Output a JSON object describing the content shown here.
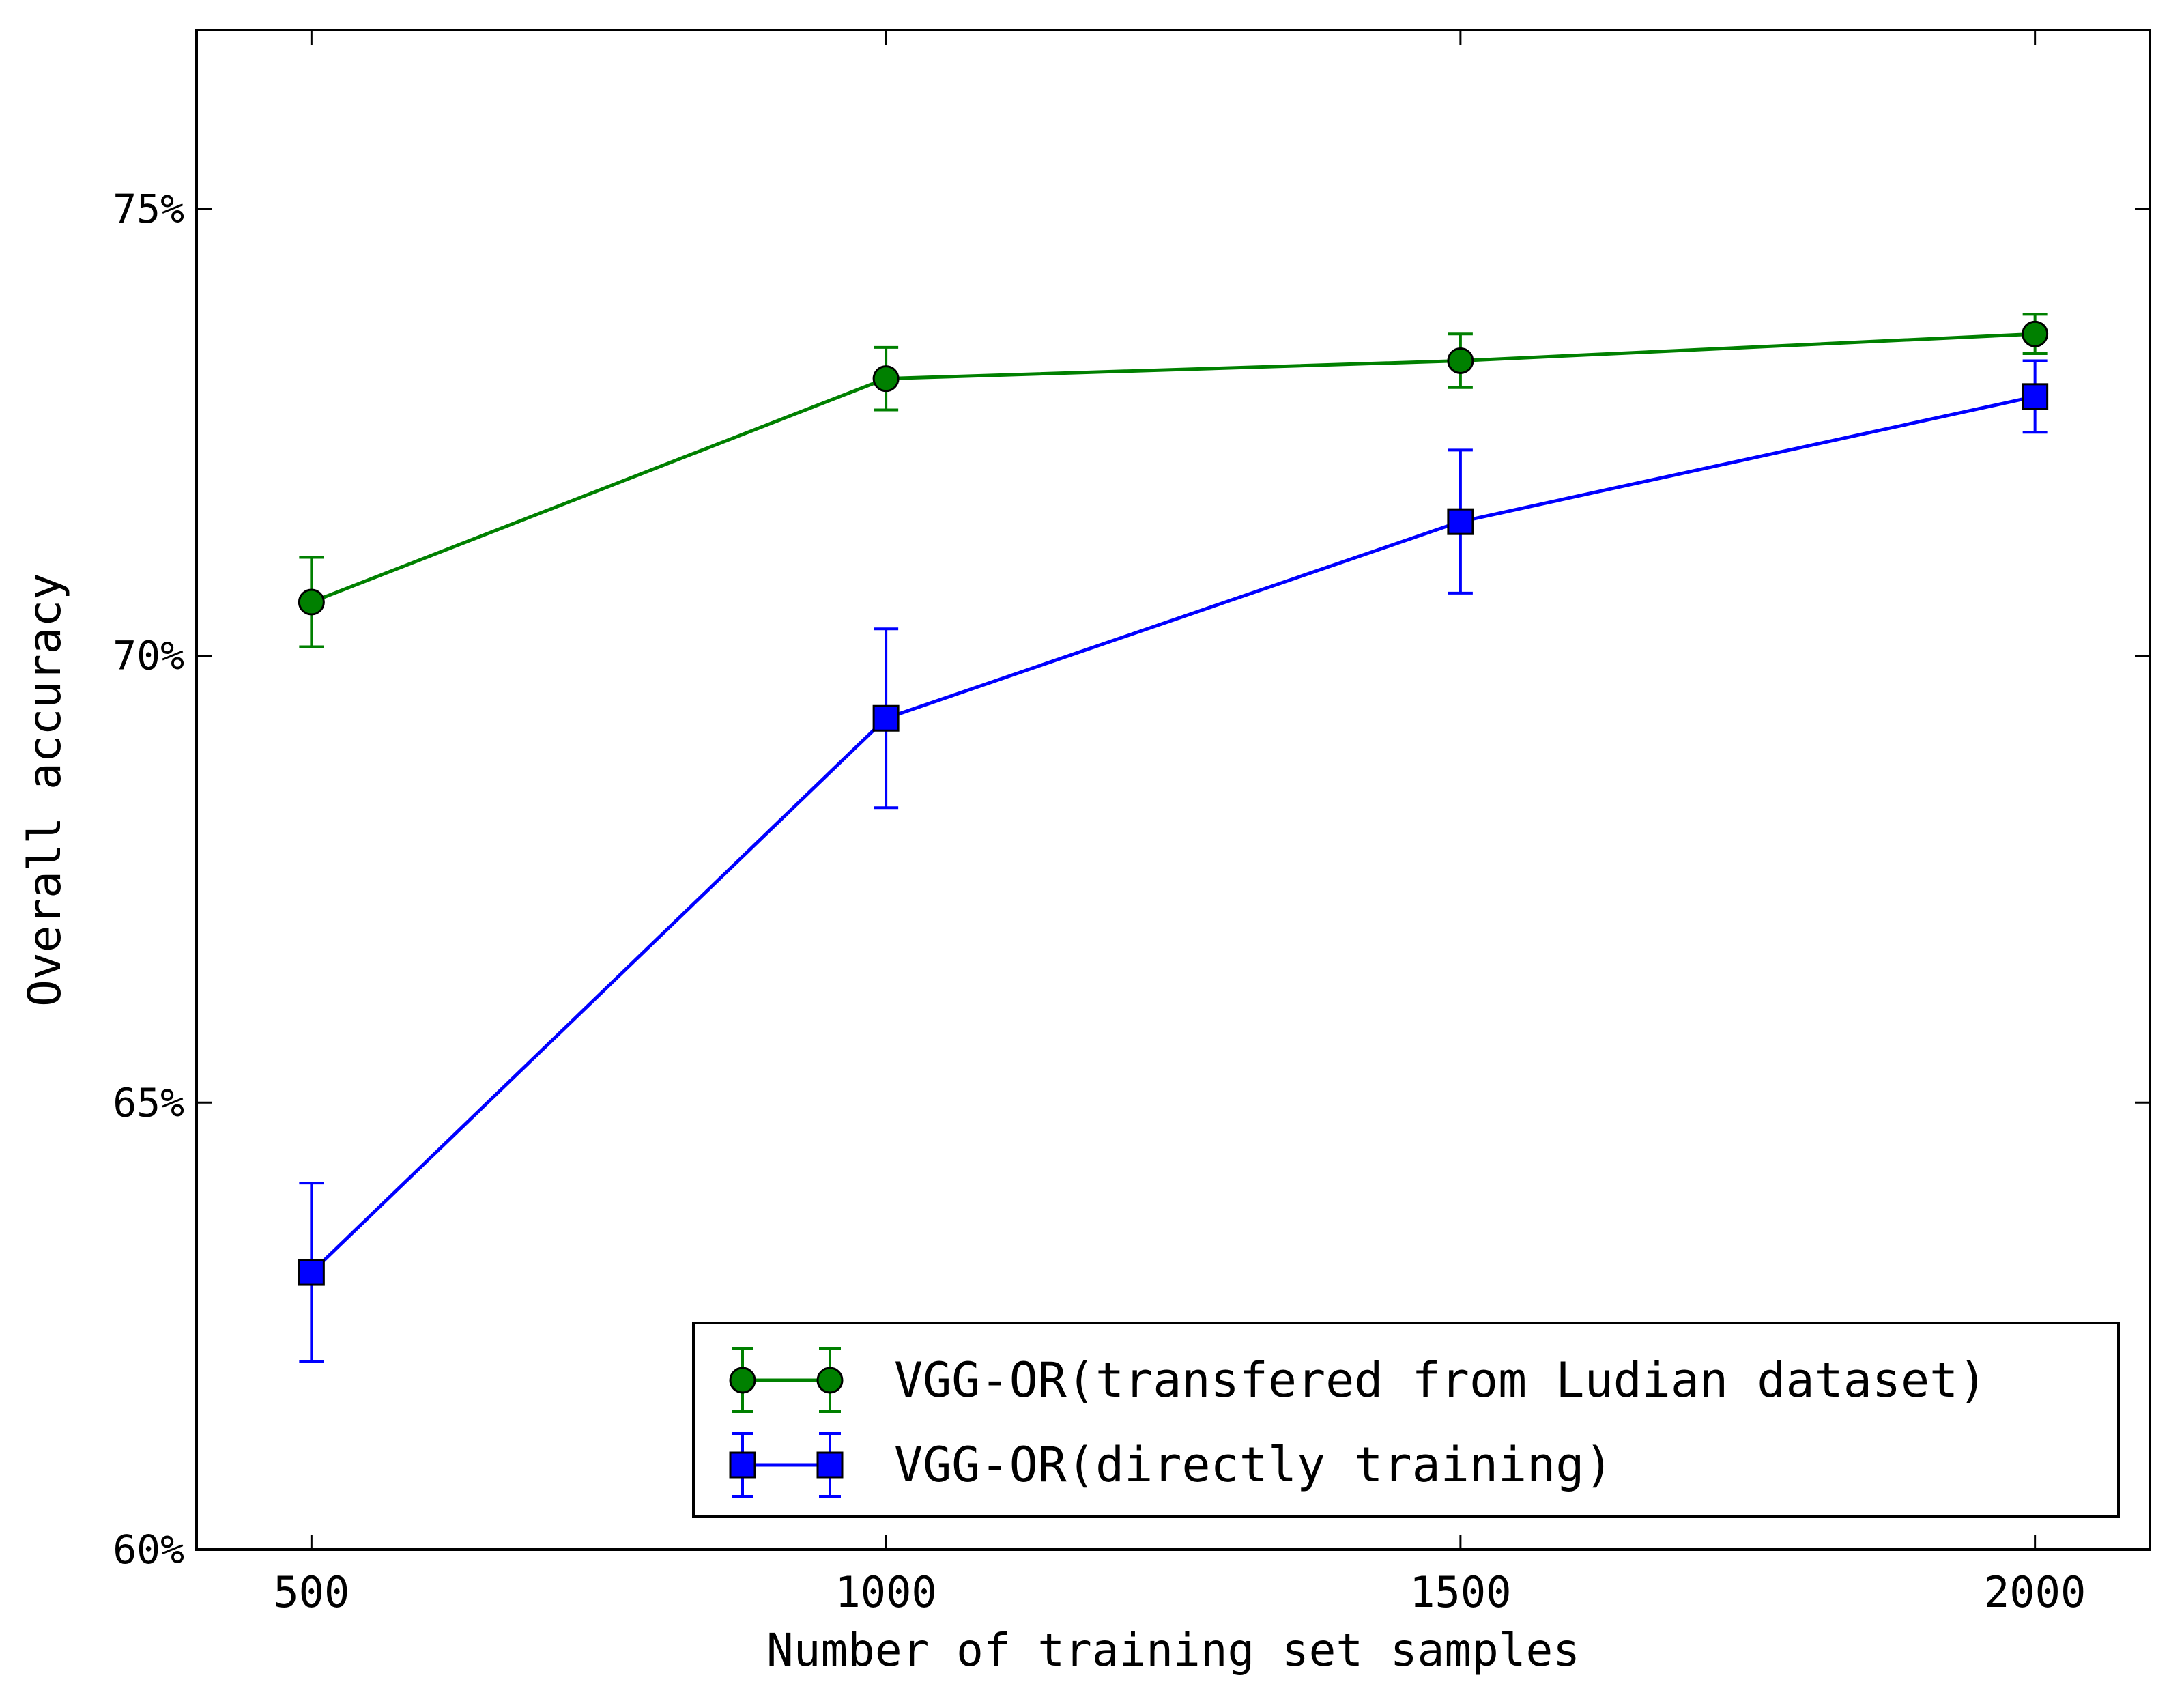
{
  "chart_data": {
    "type": "line",
    "title": "",
    "xlabel": "Number of training set samples",
    "ylabel": "Overall accuracy",
    "x": [
      500,
      1000,
      1500,
      2000
    ],
    "xlim": [
      400,
      2100
    ],
    "ylim": [
      60,
      77
    ],
    "x_ticks": [
      500,
      1000,
      1500,
      2000
    ],
    "x_tick_labels": [
      "500",
      "1000",
      "1500",
      "2000"
    ],
    "y_ticks": [
      60,
      65,
      70,
      75
    ],
    "y_tick_labels": [
      "60%",
      "65%",
      "70%",
      "75%"
    ],
    "grid": false,
    "legend_position": "lower-right",
    "series": [
      {
        "name": "VGG-OR(transfered from Ludian dataset)",
        "color": "#008000",
        "marker": "circle",
        "values": [
          70.6,
          73.1,
          73.3,
          73.6
        ],
        "errors": [
          0.5,
          0.35,
          0.3,
          0.22
        ]
      },
      {
        "name": "VGG-OR(directly training)",
        "color": "#0000ff",
        "marker": "square",
        "values": [
          63.1,
          69.3,
          71.5,
          72.9
        ],
        "errors": [
          1.0,
          1.0,
          0.8,
          0.4
        ]
      }
    ]
  }
}
